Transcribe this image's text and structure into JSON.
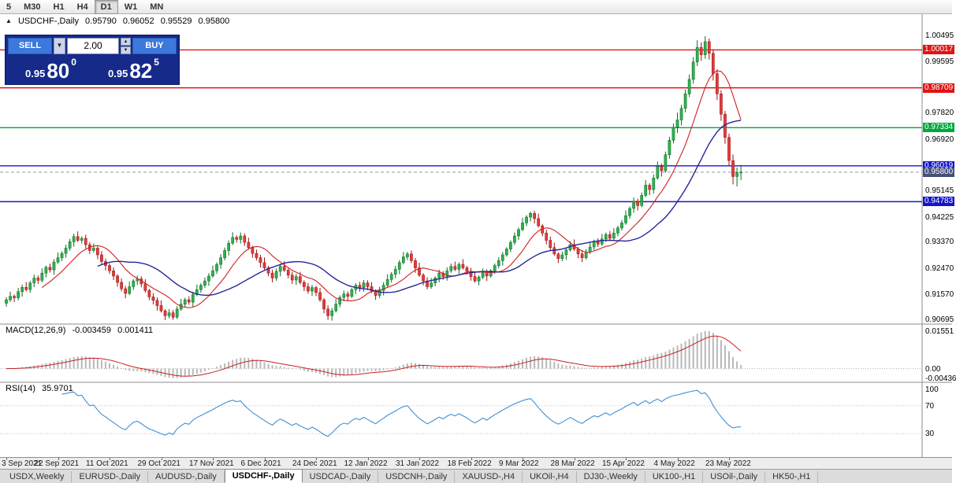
{
  "toolbar": {
    "timeframes": [
      {
        "label": "5",
        "active": false
      },
      {
        "label": "M30",
        "active": false
      },
      {
        "label": "H1",
        "active": false
      },
      {
        "label": "H4",
        "active": false
      },
      {
        "label": "D1",
        "active": true
      },
      {
        "label": "W1",
        "active": false
      },
      {
        "label": "MN",
        "active": false
      }
    ]
  },
  "chart": {
    "window_marker": "▲",
    "symbol_header": "USDCHF-,Daily",
    "ohlc": {
      "open": "0.95790",
      "high": "0.96052",
      "low": "0.95529",
      "close": "0.95800"
    },
    "trade_panel": {
      "sell_label": "SELL",
      "buy_label": "BUY",
      "volume": "2.00",
      "sell_price_small": "0.95",
      "sell_price_big": "80",
      "sell_price_sup": "0",
      "buy_price_small": "0.95",
      "buy_price_big": "82",
      "buy_price_sup": "5"
    },
    "axis_labels": [
      {
        "value": 1.00495,
        "text": "1.00495",
        "type": "plain"
      },
      {
        "value": 1.00017,
        "text": "1.00017",
        "type": "red"
      },
      {
        "value": 0.99595,
        "text": "0.99595",
        "type": "plain"
      },
      {
        "value": 0.98709,
        "text": "0.98709",
        "type": "red"
      },
      {
        "value": 0.9782,
        "text": "0.97820",
        "type": "plain"
      },
      {
        "value": 0.97334,
        "text": "0.97334",
        "type": "green"
      },
      {
        "value": 0.9692,
        "text": "0.96920",
        "type": "plain"
      },
      {
        "value": 0.96019,
        "text": "0.96019",
        "type": "blue"
      },
      {
        "value": 0.958,
        "text": "0.95800",
        "type": "current"
      },
      {
        "value": 0.95145,
        "text": "0.95145",
        "type": "plain"
      },
      {
        "value": 0.94783,
        "text": "0.94783",
        "type": "blue"
      },
      {
        "value": 0.94225,
        "text": "0.94225",
        "type": "plain"
      },
      {
        "value": 0.9337,
        "text": "0.93370",
        "type": "plain"
      },
      {
        "value": 0.9247,
        "text": "0.92470",
        "type": "plain"
      },
      {
        "value": 0.9157,
        "text": "0.91570",
        "type": "plain"
      },
      {
        "value": 0.90695,
        "text": "0.90695",
        "type": "plain"
      }
    ]
  },
  "macd": {
    "header": "MACD(12,26,9)",
    "value1": "-0.003459",
    "value2": "0.001411",
    "axis": [
      "0.01551",
      "0.00",
      "-0.00436"
    ]
  },
  "rsi": {
    "header": "RSI(14)",
    "value": "35.9701",
    "axis": [
      "100",
      "70",
      "30"
    ],
    "levels": [
      70,
      30
    ]
  },
  "tabs": [
    {
      "label": "USDX,Weekly",
      "active": false
    },
    {
      "label": "EURUSD-,Daily",
      "active": false
    },
    {
      "label": "AUDUSD-,Daily",
      "active": false
    },
    {
      "label": "USDCHF-,Daily",
      "active": true
    },
    {
      "label": "USDCAD-,Daily",
      "active": false
    },
    {
      "label": "USDCNH-,Daily",
      "active": false
    },
    {
      "label": "XAUUSD-,H4",
      "active": false
    },
    {
      "label": "UKOil-,H4",
      "active": false
    },
    {
      "label": "DJ30-,Weekly",
      "active": false
    },
    {
      "label": "UK100-,H1",
      "active": false
    },
    {
      "label": "USOil-,Daily",
      "active": false
    },
    {
      "label": "HK50-,H1",
      "active": false
    }
  ],
  "chart_data": {
    "type": "candlestick",
    "title": "USDCHF-,Daily",
    "x_tick_labels": [
      "3 Sep 2021",
      "22 Sep 2021",
      "11 Oct 2021",
      "29 Oct 2021",
      "17 Nov 2021",
      "6 Dec 2021",
      "24 Dec 2021",
      "12 Jan 2022",
      "31 Jan 2022",
      "18 Feb 2022",
      "9 Mar 2022",
      "28 Mar 2022",
      "15 Apr 2022",
      "4 May 2022",
      "23 May 2022"
    ],
    "candles_per_tick": 13,
    "price_range": [
      0.9067,
      1.0114
    ],
    "current_price": 0.958,
    "hlines": [
      {
        "value": 1.00017,
        "color": "#e01414"
      },
      {
        "value": 0.98709,
        "color": "#e01414"
      },
      {
        "value": 0.97334,
        "color": "#00a83c"
      },
      {
        "value": 0.96019,
        "color": "#1414cc"
      },
      {
        "value": 0.94783,
        "color": "#1414cc"
      }
    ],
    "overlays": [
      {
        "name": "ma-fast",
        "type": "sma",
        "period": 10,
        "color": "#d02020",
        "width": 1.1
      },
      {
        "name": "ma-slow",
        "type": "sma",
        "period": 24,
        "color": "#26269a",
        "width": 1.4
      }
    ],
    "indicators": {
      "macd": {
        "fast": 12,
        "slow": 26,
        "signal": 9,
        "current": -0.003459,
        "signal_current": 0.001411,
        "axis_max": 0.01551,
        "axis_min": -0.00436
      },
      "rsi": {
        "period": 14,
        "current": 35.9701,
        "levels": [
          70,
          30
        ]
      }
    },
    "candles": [
      [
        0.9128,
        0.9149,
        0.9116,
        0.914
      ],
      [
        0.914,
        0.9168,
        0.9133,
        0.9152
      ],
      [
        0.9152,
        0.9158,
        0.9132,
        0.9147
      ],
      [
        0.9147,
        0.9181,
        0.9138,
        0.9168
      ],
      [
        0.9168,
        0.9193,
        0.9151,
        0.9183
      ],
      [
        0.9183,
        0.9201,
        0.9169,
        0.9175
      ],
      [
        0.9175,
        0.9205,
        0.9164,
        0.9198
      ],
      [
        0.9198,
        0.9227,
        0.9184,
        0.9215
      ],
      [
        0.9215,
        0.9224,
        0.9195,
        0.9207
      ],
      [
        0.9207,
        0.9248,
        0.92,
        0.9232
      ],
      [
        0.9232,
        0.9258,
        0.9217,
        0.9252
      ],
      [
        0.9252,
        0.9265,
        0.9234,
        0.9243
      ],
      [
        0.9243,
        0.928,
        0.9226,
        0.927
      ],
      [
        0.927,
        0.9303,
        0.9264,
        0.9285
      ],
      [
        0.9285,
        0.9307,
        0.9274,
        0.93
      ],
      [
        0.93,
        0.933,
        0.9285,
        0.9318
      ],
      [
        0.9318,
        0.935,
        0.9309,
        0.934
      ],
      [
        0.934,
        0.9368,
        0.9323,
        0.9358
      ],
      [
        0.9358,
        0.9376,
        0.9339,
        0.9345
      ],
      [
        0.9345,
        0.9359,
        0.9334,
        0.9352
      ],
      [
        0.9352,
        0.9364,
        0.9316,
        0.933
      ],
      [
        0.933,
        0.9339,
        0.9298,
        0.931
      ],
      [
        0.931,
        0.9334,
        0.9303,
        0.9318
      ],
      [
        0.9318,
        0.9324,
        0.928,
        0.9295
      ],
      [
        0.9295,
        0.9308,
        0.9263,
        0.9272
      ],
      [
        0.9272,
        0.9282,
        0.9241,
        0.9258
      ],
      [
        0.9258,
        0.9265,
        0.9229,
        0.924
      ],
      [
        0.924,
        0.9252,
        0.9208,
        0.9222
      ],
      [
        0.9222,
        0.9228,
        0.9185,
        0.92
      ],
      [
        0.92,
        0.9213,
        0.9169,
        0.9178
      ],
      [
        0.9178,
        0.9188,
        0.9145,
        0.9162
      ],
      [
        0.9162,
        0.9203,
        0.9156,
        0.9185
      ],
      [
        0.9185,
        0.9212,
        0.9174,
        0.9205
      ],
      [
        0.9205,
        0.9224,
        0.9191,
        0.9212
      ],
      [
        0.9212,
        0.9221,
        0.9183,
        0.9195
      ],
      [
        0.9195,
        0.9211,
        0.9165,
        0.9172
      ],
      [
        0.9172,
        0.9178,
        0.9139,
        0.915
      ],
      [
        0.915,
        0.9163,
        0.9124,
        0.9138
      ],
      [
        0.9138,
        0.9148,
        0.9103,
        0.912
      ],
      [
        0.912,
        0.9138,
        0.9096,
        0.9102
      ],
      [
        0.9102,
        0.9108,
        0.907,
        0.9085
      ],
      [
        0.9085,
        0.9108,
        0.9076,
        0.9095
      ],
      [
        0.9095,
        0.9105,
        0.9071,
        0.908
      ],
      [
        0.908,
        0.9118,
        0.9074,
        0.9108
      ],
      [
        0.9108,
        0.9143,
        0.9102,
        0.9125
      ],
      [
        0.9125,
        0.9147,
        0.9114,
        0.914
      ],
      [
        0.914,
        0.9152,
        0.9123,
        0.9132
      ],
      [
        0.9132,
        0.9168,
        0.9115,
        0.9158
      ],
      [
        0.9158,
        0.9193,
        0.9152,
        0.9175
      ],
      [
        0.9175,
        0.9197,
        0.9164,
        0.919
      ],
      [
        0.919,
        0.9217,
        0.9181,
        0.9205
      ],
      [
        0.9205,
        0.9232,
        0.9188,
        0.9222
      ],
      [
        0.9222,
        0.9258,
        0.9216,
        0.924
      ],
      [
        0.924,
        0.9269,
        0.9229,
        0.9262
      ],
      [
        0.9262,
        0.9297,
        0.9247,
        0.9285
      ],
      [
        0.9285,
        0.932,
        0.9276,
        0.931
      ],
      [
        0.931,
        0.9345,
        0.9293,
        0.9335
      ],
      [
        0.9335,
        0.9373,
        0.9329,
        0.9355
      ],
      [
        0.9355,
        0.9362,
        0.9337,
        0.9348
      ],
      [
        0.9348,
        0.9372,
        0.9334,
        0.936
      ],
      [
        0.936,
        0.9369,
        0.9326,
        0.9338
      ],
      [
        0.9338,
        0.9354,
        0.9313,
        0.932
      ],
      [
        0.932,
        0.9326,
        0.9285,
        0.93
      ],
      [
        0.93,
        0.9313,
        0.9276,
        0.9285
      ],
      [
        0.9285,
        0.9295,
        0.9251,
        0.9268
      ],
      [
        0.9268,
        0.9286,
        0.9244,
        0.925
      ],
      [
        0.925,
        0.9257,
        0.9221,
        0.9232
      ],
      [
        0.9232,
        0.9244,
        0.92,
        0.9215
      ],
      [
        0.9215,
        0.9248,
        0.9206,
        0.9238
      ],
      [
        0.9238,
        0.9265,
        0.9221,
        0.9255
      ],
      [
        0.9255,
        0.9273,
        0.9236,
        0.9242
      ],
      [
        0.9242,
        0.9249,
        0.9214,
        0.9225
      ],
      [
        0.9225,
        0.9237,
        0.9194,
        0.9208
      ],
      [
        0.9208,
        0.9229,
        0.9191,
        0.922
      ],
      [
        0.922,
        0.9236,
        0.9193,
        0.92
      ],
      [
        0.92,
        0.9207,
        0.917,
        0.9185
      ],
      [
        0.9185,
        0.9198,
        0.9161,
        0.917
      ],
      [
        0.917,
        0.9192,
        0.9153,
        0.9182
      ],
      [
        0.9182,
        0.9188,
        0.9153,
        0.9165
      ],
      [
        0.9165,
        0.9181,
        0.9133,
        0.914
      ],
      [
        0.914,
        0.9146,
        0.9093,
        0.9108
      ],
      [
        0.9108,
        0.9121,
        0.9071,
        0.9085
      ],
      [
        0.9085,
        0.9112,
        0.9068,
        0.9102
      ],
      [
        0.9102,
        0.9143,
        0.9096,
        0.9125
      ],
      [
        0.9125,
        0.9155,
        0.9114,
        0.9148
      ],
      [
        0.9148,
        0.9172,
        0.9134,
        0.916
      ],
      [
        0.916,
        0.9169,
        0.9135,
        0.9152
      ],
      [
        0.9152,
        0.9181,
        0.9146,
        0.9175
      ],
      [
        0.9175,
        0.9197,
        0.916,
        0.919
      ],
      [
        0.919,
        0.9202,
        0.9168,
        0.9182
      ],
      [
        0.9182,
        0.9208,
        0.9168,
        0.9198
      ],
      [
        0.9198,
        0.9207,
        0.9173,
        0.9185
      ],
      [
        0.9185,
        0.9201,
        0.9163,
        0.917
      ],
      [
        0.917,
        0.9176,
        0.914,
        0.9155
      ],
      [
        0.9155,
        0.9185,
        0.9146,
        0.9172
      ],
      [
        0.9172,
        0.92,
        0.9155,
        0.919
      ],
      [
        0.919,
        0.9228,
        0.9184,
        0.921
      ],
      [
        0.921,
        0.9235,
        0.9199,
        0.9228
      ],
      [
        0.9228,
        0.9257,
        0.9214,
        0.9245
      ],
      [
        0.9245,
        0.9277,
        0.9228,
        0.9268
      ],
      [
        0.9268,
        0.9305,
        0.9262,
        0.9288
      ],
      [
        0.9288,
        0.9305,
        0.9277,
        0.9298
      ],
      [
        0.9298,
        0.931,
        0.9266,
        0.9275
      ],
      [
        0.9275,
        0.9284,
        0.9233,
        0.925
      ],
      [
        0.925,
        0.9268,
        0.9219,
        0.9225
      ],
      [
        0.9225,
        0.9232,
        0.919,
        0.9205
      ],
      [
        0.9205,
        0.9218,
        0.9176,
        0.9185
      ],
      [
        0.9185,
        0.9215,
        0.9178,
        0.9198
      ],
      [
        0.9198,
        0.9221,
        0.9187,
        0.9215
      ],
      [
        0.9215,
        0.9244,
        0.92,
        0.9232
      ],
      [
        0.9232,
        0.9239,
        0.9209,
        0.922
      ],
      [
        0.922,
        0.9252,
        0.9206,
        0.924
      ],
      [
        0.924,
        0.9265,
        0.9233,
        0.9255
      ],
      [
        0.9255,
        0.9272,
        0.9239,
        0.9245
      ],
      [
        0.9245,
        0.9269,
        0.9228,
        0.9262
      ],
      [
        0.9262,
        0.928,
        0.9244,
        0.925
      ],
      [
        0.925,
        0.9257,
        0.9227,
        0.9238
      ],
      [
        0.9238,
        0.925,
        0.9206,
        0.922
      ],
      [
        0.922,
        0.9237,
        0.9199,
        0.9205
      ],
      [
        0.9205,
        0.9224,
        0.919,
        0.9218
      ],
      [
        0.9218,
        0.9248,
        0.9211,
        0.9235
      ],
      [
        0.9235,
        0.9245,
        0.9205,
        0.9222
      ],
      [
        0.9222,
        0.9246,
        0.9216,
        0.924
      ],
      [
        0.924,
        0.9265,
        0.9229,
        0.9258
      ],
      [
        0.9258,
        0.9287,
        0.9249,
        0.9275
      ],
      [
        0.9275,
        0.9305,
        0.9258,
        0.9295
      ],
      [
        0.9295,
        0.9321,
        0.9289,
        0.9315
      ],
      [
        0.9315,
        0.9345,
        0.9304,
        0.9338
      ],
      [
        0.9338,
        0.9372,
        0.9329,
        0.936
      ],
      [
        0.936,
        0.9389,
        0.9346,
        0.9382
      ],
      [
        0.9382,
        0.9423,
        0.9376,
        0.9405
      ],
      [
        0.9405,
        0.9432,
        0.9394,
        0.9425
      ],
      [
        0.9425,
        0.9444,
        0.941,
        0.9438
      ],
      [
        0.9438,
        0.9447,
        0.9403,
        0.942
      ],
      [
        0.942,
        0.9437,
        0.9389,
        0.9395
      ],
      [
        0.9395,
        0.9401,
        0.9359,
        0.937
      ],
      [
        0.937,
        0.9381,
        0.9331,
        0.9345
      ],
      [
        0.9345,
        0.9358,
        0.9311,
        0.932
      ],
      [
        0.932,
        0.9337,
        0.9292,
        0.9298
      ],
      [
        0.9298,
        0.9304,
        0.9267,
        0.9282
      ],
      [
        0.9282,
        0.9306,
        0.9273,
        0.9295
      ],
      [
        0.9295,
        0.9319,
        0.9278,
        0.9312
      ],
      [
        0.9312,
        0.9342,
        0.9306,
        0.933
      ],
      [
        0.933,
        0.9348,
        0.9309,
        0.9315
      ],
      [
        0.9315,
        0.9322,
        0.9283,
        0.9298
      ],
      [
        0.9298,
        0.9311,
        0.927,
        0.9285
      ],
      [
        0.9285,
        0.9315,
        0.9279,
        0.9305
      ],
      [
        0.9305,
        0.9339,
        0.9298,
        0.9322
      ],
      [
        0.9322,
        0.9347,
        0.9311,
        0.934
      ],
      [
        0.934,
        0.9352,
        0.9322,
        0.9332
      ],
      [
        0.9332,
        0.9367,
        0.9326,
        0.935
      ],
      [
        0.935,
        0.9372,
        0.9339,
        0.9365
      ],
      [
        0.9365,
        0.9377,
        0.9343,
        0.9352
      ],
      [
        0.9352,
        0.9387,
        0.9346,
        0.937
      ],
      [
        0.937,
        0.9395,
        0.9359,
        0.9388
      ],
      [
        0.9388,
        0.9415,
        0.9379,
        0.9405
      ],
      [
        0.9405,
        0.9448,
        0.9399,
        0.943
      ],
      [
        0.943,
        0.9462,
        0.9419,
        0.9455
      ],
      [
        0.9455,
        0.9493,
        0.944,
        0.948
      ],
      [
        0.948,
        0.9489,
        0.9448,
        0.9465
      ],
      [
        0.9465,
        0.951,
        0.9459,
        0.95
      ],
      [
        0.95,
        0.9553,
        0.9494,
        0.9535
      ],
      [
        0.9535,
        0.9542,
        0.9501,
        0.952
      ],
      [
        0.952,
        0.9572,
        0.9506,
        0.956
      ],
      [
        0.956,
        0.9617,
        0.9554,
        0.96
      ],
      [
        0.96,
        0.961,
        0.9565,
        0.9585
      ],
      [
        0.9585,
        0.9651,
        0.9579,
        0.964
      ],
      [
        0.964,
        0.9702,
        0.9626,
        0.969
      ],
      [
        0.969,
        0.9748,
        0.9679,
        0.9735
      ],
      [
        0.9735,
        0.9785,
        0.9715,
        0.976
      ],
      [
        0.976,
        0.9812,
        0.9741,
        0.98
      ],
      [
        0.98,
        0.9865,
        0.9786,
        0.985
      ],
      [
        0.985,
        0.9917,
        0.9839,
        0.99
      ],
      [
        0.99,
        0.9977,
        0.9885,
        0.996
      ],
      [
        0.996,
        1.0035,
        0.9946,
        1.001
      ],
      [
        1.001,
        1.0028,
        0.9964,
        0.9985
      ],
      [
        0.9985,
        1.0049,
        0.9971,
        1.003
      ],
      [
        1.003,
        1.0041,
        0.9968,
        0.999
      ],
      [
        0.999,
        1.0002,
        0.9896,
        0.992
      ],
      [
        0.992,
        0.9935,
        0.9829,
        0.985
      ],
      [
        0.985,
        0.9862,
        0.9757,
        0.978
      ],
      [
        0.978,
        0.9791,
        0.9678,
        0.97
      ],
      [
        0.97,
        0.9713,
        0.9601,
        0.962
      ],
      [
        0.962,
        0.9641,
        0.9538,
        0.9565
      ],
      [
        0.9565,
        0.9596,
        0.9531,
        0.9579
      ],
      [
        0.9579,
        0.96052,
        0.95529,
        0.958
      ]
    ]
  }
}
